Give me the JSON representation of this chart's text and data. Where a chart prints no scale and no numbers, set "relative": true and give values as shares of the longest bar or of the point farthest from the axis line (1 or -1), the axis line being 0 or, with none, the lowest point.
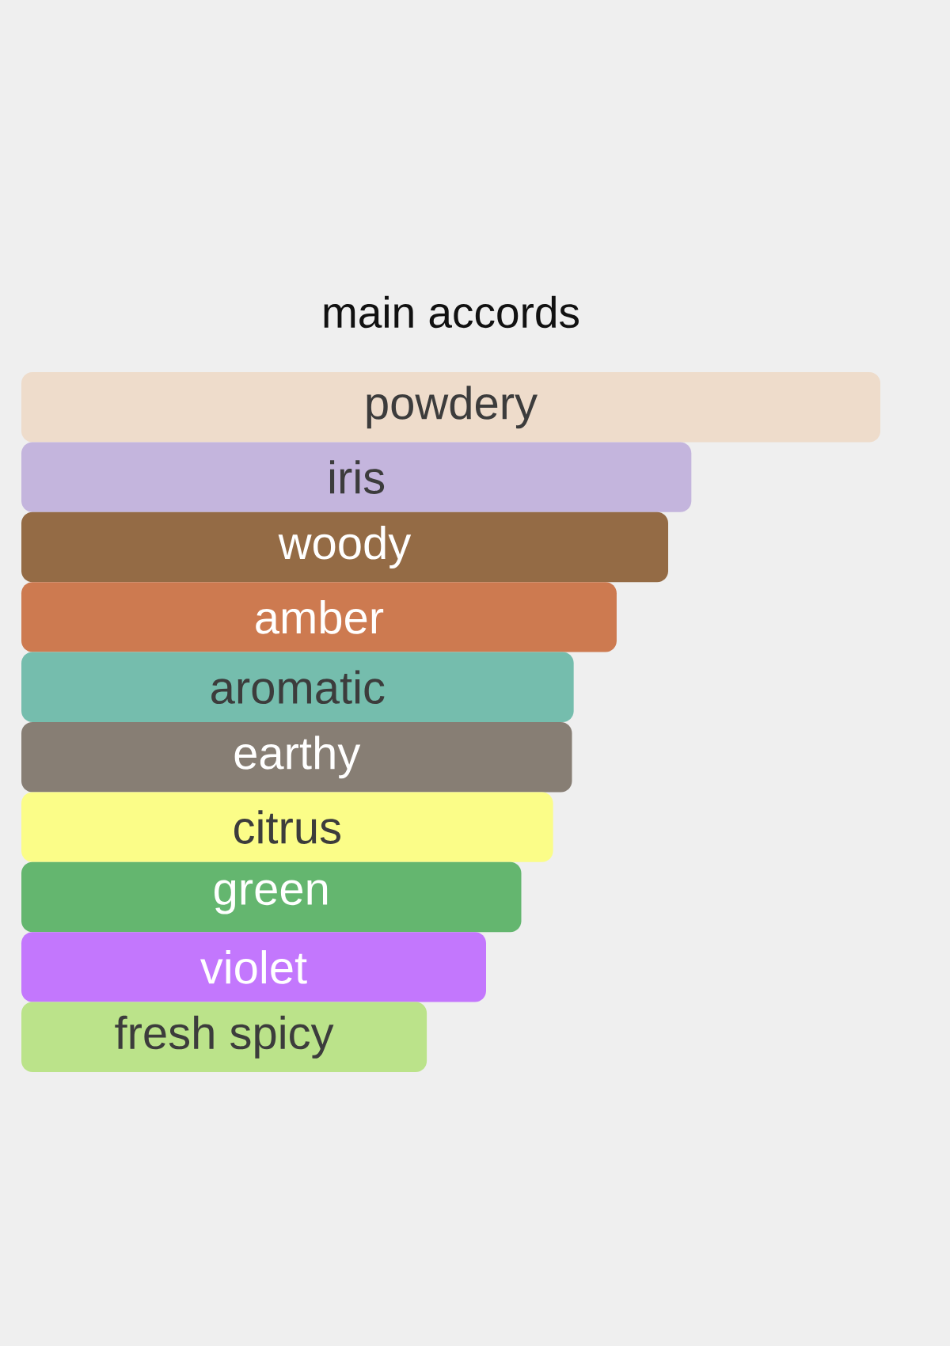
{
  "chart_data": {
    "type": "bar",
    "orientation": "horizontal",
    "relative": true,
    "title": "main accords",
    "categories": [
      "powdery",
      "iris",
      "woody",
      "amber",
      "aromatic",
      "earthy",
      "citrus",
      "green",
      "violet",
      "fresh spicy"
    ],
    "values": [
      1,
      0.78,
      0.753,
      0.693,
      0.643,
      0.641,
      0.619,
      0.582,
      0.541,
      0.472
    ],
    "colors": [
      "#eedccb",
      "#c4b5dd",
      "#946b45",
      "#cd7a50",
      "#75bdad",
      "#877e74",
      "#fbfd88",
      "#64b66f",
      "#c377fd",
      "#bbe38a"
    ]
  }
}
